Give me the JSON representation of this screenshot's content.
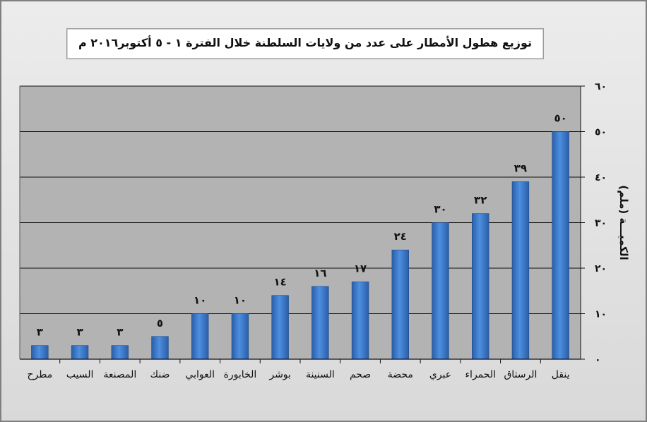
{
  "chart_data": {
    "type": "bar",
    "title": "توزيع هطول الأمطار على عدد من ولايات السلطنة خلال الفترة ١ - ٥ أكتوبر٢٠١٦ م",
    "xlabel": "",
    "ylabel": "الكميـــة (ملم)",
    "ylim": [
      0,
      60
    ],
    "yticks": [
      0,
      10,
      20,
      30,
      40,
      50,
      60
    ],
    "ytick_labels": [
      "٠",
      "١٠",
      "٢٠",
      "٣٠",
      "٤٠",
      "٥٠",
      "٦٠"
    ],
    "y_axis_side": "right",
    "categories": [
      "مطرح",
      "السيب",
      "المصنعة",
      "ضنك",
      "العوابي",
      "الخابورة",
      "بوشر",
      "السنينة",
      "صحم",
      "محضة",
      "عبري",
      "الحمراء",
      "الرستاق",
      "ينقل"
    ],
    "values": [
      3,
      3,
      3,
      5,
      10,
      10,
      14,
      16,
      17,
      24,
      30,
      32,
      39,
      50
    ],
    "value_labels": [
      "٣",
      "٣",
      "٣",
      "٥",
      "١٠",
      "١٠",
      "١٤",
      "١٦",
      "١٧",
      "٢٤",
      "٣٠",
      "٣٢",
      "٣٩",
      "٥٠"
    ],
    "grid": true,
    "bar_color": "#3a78cc",
    "plot_background": "#b3b3b3"
  }
}
